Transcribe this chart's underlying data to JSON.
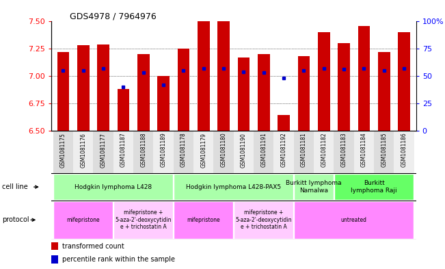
{
  "title": "GDS4978 / 7964976",
  "samples": [
    "GSM1081175",
    "GSM1081176",
    "GSM1081177",
    "GSM1081187",
    "GSM1081188",
    "GSM1081189",
    "GSM1081178",
    "GSM1081179",
    "GSM1081180",
    "GSM1081190",
    "GSM1081191",
    "GSM1081192",
    "GSM1081181",
    "GSM1081182",
    "GSM1081183",
    "GSM1081184",
    "GSM1081185",
    "GSM1081186"
  ],
  "transformed_counts": [
    7.22,
    7.28,
    7.29,
    6.88,
    7.2,
    7.0,
    7.25,
    7.5,
    7.5,
    7.17,
    7.2,
    6.64,
    7.18,
    7.4,
    7.3,
    7.46,
    7.22,
    7.4
  ],
  "percentile_ranks": [
    55,
    55,
    57,
    40,
    53,
    42,
    55,
    57,
    57,
    54,
    53,
    48,
    55,
    57,
    56,
    57,
    55,
    57
  ],
  "ylim_left": [
    6.5,
    7.5
  ],
  "ylim_right": [
    0,
    100
  ],
  "yticks_left": [
    6.5,
    6.75,
    7.0,
    7.25,
    7.5
  ],
  "yticks_right": [
    0,
    25,
    50,
    75,
    100
  ],
  "ytick_labels_right": [
    "0",
    "25",
    "50",
    "75",
    "100%"
  ],
  "bar_color": "#cc0000",
  "dot_color": "#0000cc",
  "bar_width": 0.6,
  "gridline_values": [
    6.75,
    7.0,
    7.25
  ],
  "group_boundaries": [
    6,
    12,
    14
  ],
  "cell_line_groups": [
    {
      "label": "Hodgkin lymphoma L428",
      "start": 0,
      "end": 6,
      "color": "#aaffaa"
    },
    {
      "label": "Hodgkin lymphoma L428-PAX5",
      "start": 6,
      "end": 12,
      "color": "#aaffaa"
    },
    {
      "label": "Burkitt lymphoma\nNamalwa",
      "start": 12,
      "end": 14,
      "color": "#aaffaa"
    },
    {
      "label": "Burkitt\nlymphoma Raji",
      "start": 14,
      "end": 18,
      "color": "#66ff66"
    }
  ],
  "protocol_groups": [
    {
      "label": "mifepristone",
      "start": 0,
      "end": 3,
      "color": "#ff88ff"
    },
    {
      "label": "mifepristone +\n5-aza-2'-deoxycytidin\ne + trichostatin A",
      "start": 3,
      "end": 6,
      "color": "#ffccff"
    },
    {
      "label": "mifepristone",
      "start": 6,
      "end": 9,
      "color": "#ff88ff"
    },
    {
      "label": "mifepristone +\n5-aza-2'-deoxycytidin\ne + trichostatin A",
      "start": 9,
      "end": 12,
      "color": "#ffccff"
    },
    {
      "label": "untreated",
      "start": 12,
      "end": 18,
      "color": "#ff88ff"
    }
  ],
  "xlabel_bg_color": "#dddddd",
  "fig_width": 6.51,
  "fig_height": 3.93,
  "dpi": 100
}
